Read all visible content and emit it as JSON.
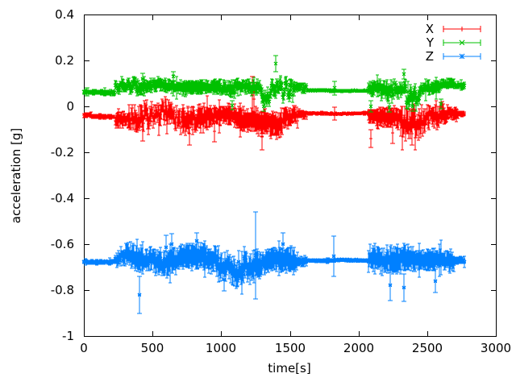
{
  "figure": {
    "background": "#ffffff",
    "description": "gnuplot errorbar plot of 3-axis accelerometer data"
  },
  "chart_data": {
    "type": "scatter",
    "style": "errorbars",
    "title": "",
    "xlabel": "time[s]",
    "ylabel": "acceleration [g]",
    "xlim": [
      0,
      3000
    ],
    "ylim": [
      -1,
      0.4
    ],
    "xticks": [
      0,
      500,
      1000,
      1500,
      2000,
      2500,
      3000
    ],
    "xtick_labels": [
      "0",
      "500",
      "1000",
      "1500",
      "2000",
      "2500",
      "3000"
    ],
    "yticks": [
      0.4,
      0.2,
      0,
      -0.2,
      -0.4,
      -0.6,
      -0.8,
      -1
    ],
    "ytick_labels": [
      "0.4",
      "0.2",
      "0",
      "-0.2",
      "-0.4",
      "-0.6",
      "-0.8",
      "-1"
    ],
    "grid": false,
    "axis_color": "#000000",
    "legend": {
      "position": "top-right-inside",
      "entries": [
        "X",
        "Y",
        "Z"
      ]
    },
    "sample_step_s": 5,
    "segments_format": [
      "t_start_s",
      "t_end_s",
      "mean_g",
      "noise_amplitude_g",
      "errorbar_halfwidth_g"
    ],
    "spikes_format": [
      "t_s",
      "value_g",
      "errorbar_halfwidth_g"
    ],
    "series": [
      {
        "name": "X",
        "color": "#ff0000",
        "marker": "plus",
        "seed": 7,
        "segments": [
          [
            0,
            60,
            -0.038,
            0.004,
            0.009
          ],
          [
            60,
            230,
            -0.044,
            0.005,
            0.01
          ],
          [
            230,
            330,
            -0.05,
            0.022,
            0.032
          ],
          [
            330,
            480,
            -0.058,
            0.034,
            0.045
          ],
          [
            480,
            700,
            -0.05,
            0.03,
            0.04
          ],
          [
            700,
            900,
            -0.06,
            0.036,
            0.05
          ],
          [
            900,
            1100,
            -0.046,
            0.03,
            0.042
          ],
          [
            1100,
            1260,
            -0.06,
            0.042,
            0.052
          ],
          [
            1260,
            1450,
            -0.068,
            0.046,
            0.055
          ],
          [
            1450,
            1560,
            -0.05,
            0.03,
            0.04
          ],
          [
            1560,
            1625,
            -0.036,
            0.012,
            0.016
          ],
          [
            1625,
            2075,
            -0.03,
            0.003,
            0.005
          ],
          [
            2075,
            2130,
            -0.042,
            0.02,
            0.03
          ],
          [
            2130,
            2300,
            -0.05,
            0.032,
            0.042
          ],
          [
            2300,
            2480,
            -0.058,
            0.04,
            0.05
          ],
          [
            2480,
            2650,
            -0.05,
            0.03,
            0.04
          ],
          [
            2650,
            2730,
            -0.042,
            0.02,
            0.026
          ],
          [
            2730,
            2775,
            -0.034,
            0.007,
            0.011
          ]
        ],
        "spikes": [
          [
            430,
            -0.1,
            0.05
          ],
          [
            770,
            -0.12,
            0.05
          ],
          [
            950,
            -0.11,
            0.045
          ],
          [
            1227,
            0.05,
            0.08
          ],
          [
            1240,
            0.03,
            0.07
          ],
          [
            1300,
            -0.13,
            0.06
          ],
          [
            1825,
            -0.03,
            0.028
          ],
          [
            2090,
            -0.14,
            0.04
          ],
          [
            2250,
            -0.115,
            0.045
          ],
          [
            2390,
            -0.12,
            0.05
          ]
        ]
      },
      {
        "name": "Y",
        "color": "#00c000",
        "marker": "cross",
        "seed": 13,
        "segments": [
          [
            0,
            230,
            0.062,
            0.005,
            0.01
          ],
          [
            230,
            330,
            0.095,
            0.016,
            0.022
          ],
          [
            330,
            700,
            0.09,
            0.018,
            0.026
          ],
          [
            700,
            1000,
            0.085,
            0.02,
            0.03
          ],
          [
            1000,
            1100,
            0.068,
            0.026,
            0.032
          ],
          [
            1100,
            1290,
            0.082,
            0.02,
            0.028
          ],
          [
            1290,
            1360,
            0.05,
            0.026,
            0.03
          ],
          [
            1360,
            1450,
            0.08,
            0.02,
            0.026
          ],
          [
            1450,
            1540,
            0.045,
            0.033,
            0.03
          ],
          [
            1540,
            1625,
            0.068,
            0.012,
            0.016
          ],
          [
            1625,
            2075,
            0.068,
            0.003,
            0.005
          ],
          [
            2075,
            2160,
            0.08,
            0.022,
            0.03
          ],
          [
            2160,
            2260,
            0.062,
            0.03,
            0.036
          ],
          [
            2260,
            2350,
            0.088,
            0.02,
            0.028
          ],
          [
            2350,
            2450,
            0.062,
            0.03,
            0.036
          ],
          [
            2450,
            2600,
            0.088,
            0.02,
            0.026
          ],
          [
            2600,
            2700,
            0.098,
            0.016,
            0.022
          ],
          [
            2700,
            2775,
            0.09,
            0.008,
            0.013
          ]
        ],
        "spikes": [
          [
            430,
            0.12,
            0.025
          ],
          [
            650,
            0.13,
            0.02
          ],
          [
            1080,
            0.005,
            0.02
          ],
          [
            1310,
            0.0,
            0.02
          ],
          [
            1395,
            0.185,
            0.035
          ],
          [
            1503,
            0.095,
            0.02
          ],
          [
            1825,
            0.08,
            0.03
          ],
          [
            2090,
            0.0,
            0.025
          ],
          [
            2225,
            -0.005,
            0.02
          ],
          [
            2330,
            0.14,
            0.02
          ],
          [
            2395,
            0.0,
            0.02
          ],
          [
            2600,
            0.01,
            0.02
          ]
        ]
      },
      {
        "name": "Z",
        "color": "#0080ff",
        "marker": "star",
        "seed": 29,
        "segments": [
          [
            0,
            230,
            -0.678,
            0.004,
            0.009
          ],
          [
            230,
            300,
            -0.672,
            0.016,
            0.026
          ],
          [
            300,
            500,
            -0.67,
            0.03,
            0.046
          ],
          [
            500,
            700,
            -0.665,
            0.035,
            0.05
          ],
          [
            700,
            900,
            -0.655,
            0.04,
            0.055
          ],
          [
            900,
            1100,
            -0.67,
            0.035,
            0.05
          ],
          [
            1100,
            1350,
            -0.68,
            0.04,
            0.055
          ],
          [
            1350,
            1560,
            -0.67,
            0.035,
            0.05
          ],
          [
            1560,
            1625,
            -0.674,
            0.014,
            0.02
          ],
          [
            1625,
            2075,
            -0.672,
            0.003,
            0.006
          ],
          [
            2075,
            2200,
            -0.67,
            0.03,
            0.045
          ],
          [
            2200,
            2400,
            -0.664,
            0.04,
            0.055
          ],
          [
            2400,
            2560,
            -0.67,
            0.032,
            0.046
          ],
          [
            2560,
            2700,
            -0.664,
            0.03,
            0.042
          ],
          [
            2700,
            2775,
            -0.667,
            0.009,
            0.016
          ]
        ],
        "spikes": [
          [
            405,
            -0.82,
            0.08
          ],
          [
            600,
            -0.615,
            0.055
          ],
          [
            640,
            -0.6,
            0.045
          ],
          [
            820,
            -0.585,
            0.035
          ],
          [
            1020,
            -0.755,
            0.05
          ],
          [
            1250,
            -0.65,
            0.19
          ],
          [
            1450,
            -0.6,
            0.05
          ],
          [
            1820,
            -0.652,
            0.088
          ],
          [
            2230,
            -0.78,
            0.065
          ],
          [
            2330,
            -0.79,
            0.06
          ],
          [
            2560,
            -0.76,
            0.05
          ]
        ]
      }
    ]
  }
}
